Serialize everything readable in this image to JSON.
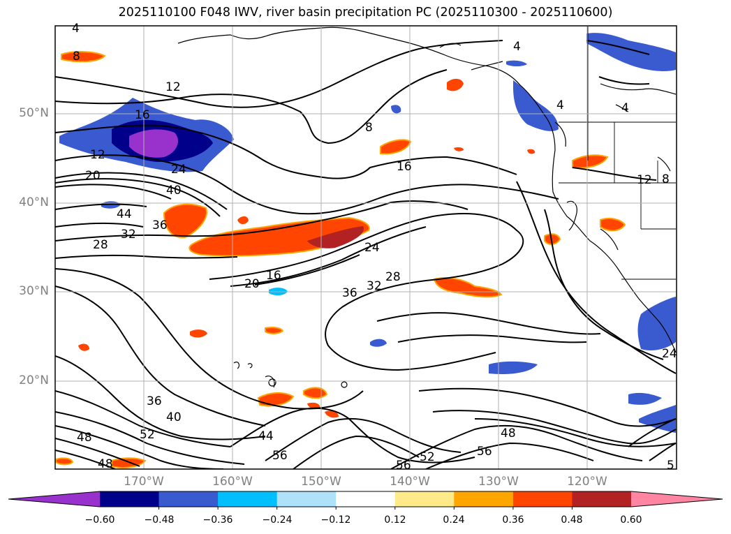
{
  "title": "2025110100 F048 IWV, river basin precipitation PC (2025110300 - 2025110600)",
  "lat_labels": [
    "50°N",
    "40°N",
    "30°N",
    "20°N"
  ],
  "lon_labels": [
    "170°W",
    "160°W",
    "150°W",
    "140°W",
    "130°W",
    "120°W"
  ],
  "colorbar": {
    "ticks": [
      "−0.60",
      "−0.48",
      "−0.36",
      "−0.24",
      "−0.12",
      "0.12",
      "0.24",
      "0.36",
      "0.48",
      "0.60"
    ],
    "colors": [
      "#9932cc",
      "#00008b",
      "#3a5bd0",
      "#00bfff",
      "#afe1fa",
      "#ffffff",
      "#ffea8a",
      "#ffa500",
      "#ff4500",
      "#b22222",
      "#ff85a2"
    ]
  },
  "contour_labels": [
    "4",
    "8",
    "12",
    "16",
    "8",
    "12",
    "20",
    "24",
    "40",
    "44",
    "36",
    "32",
    "28",
    "16",
    "20",
    "16",
    "24",
    "36",
    "32",
    "28",
    "4",
    "4",
    "4",
    "12",
    "8",
    "24",
    "36",
    "40",
    "52",
    "48",
    "48",
    "44",
    "56",
    "56",
    "52",
    "56",
    "48",
    "5"
  ],
  "colors": {
    "contour": "#000000",
    "coast": "#000000",
    "grid": "#b0b0b0"
  }
}
